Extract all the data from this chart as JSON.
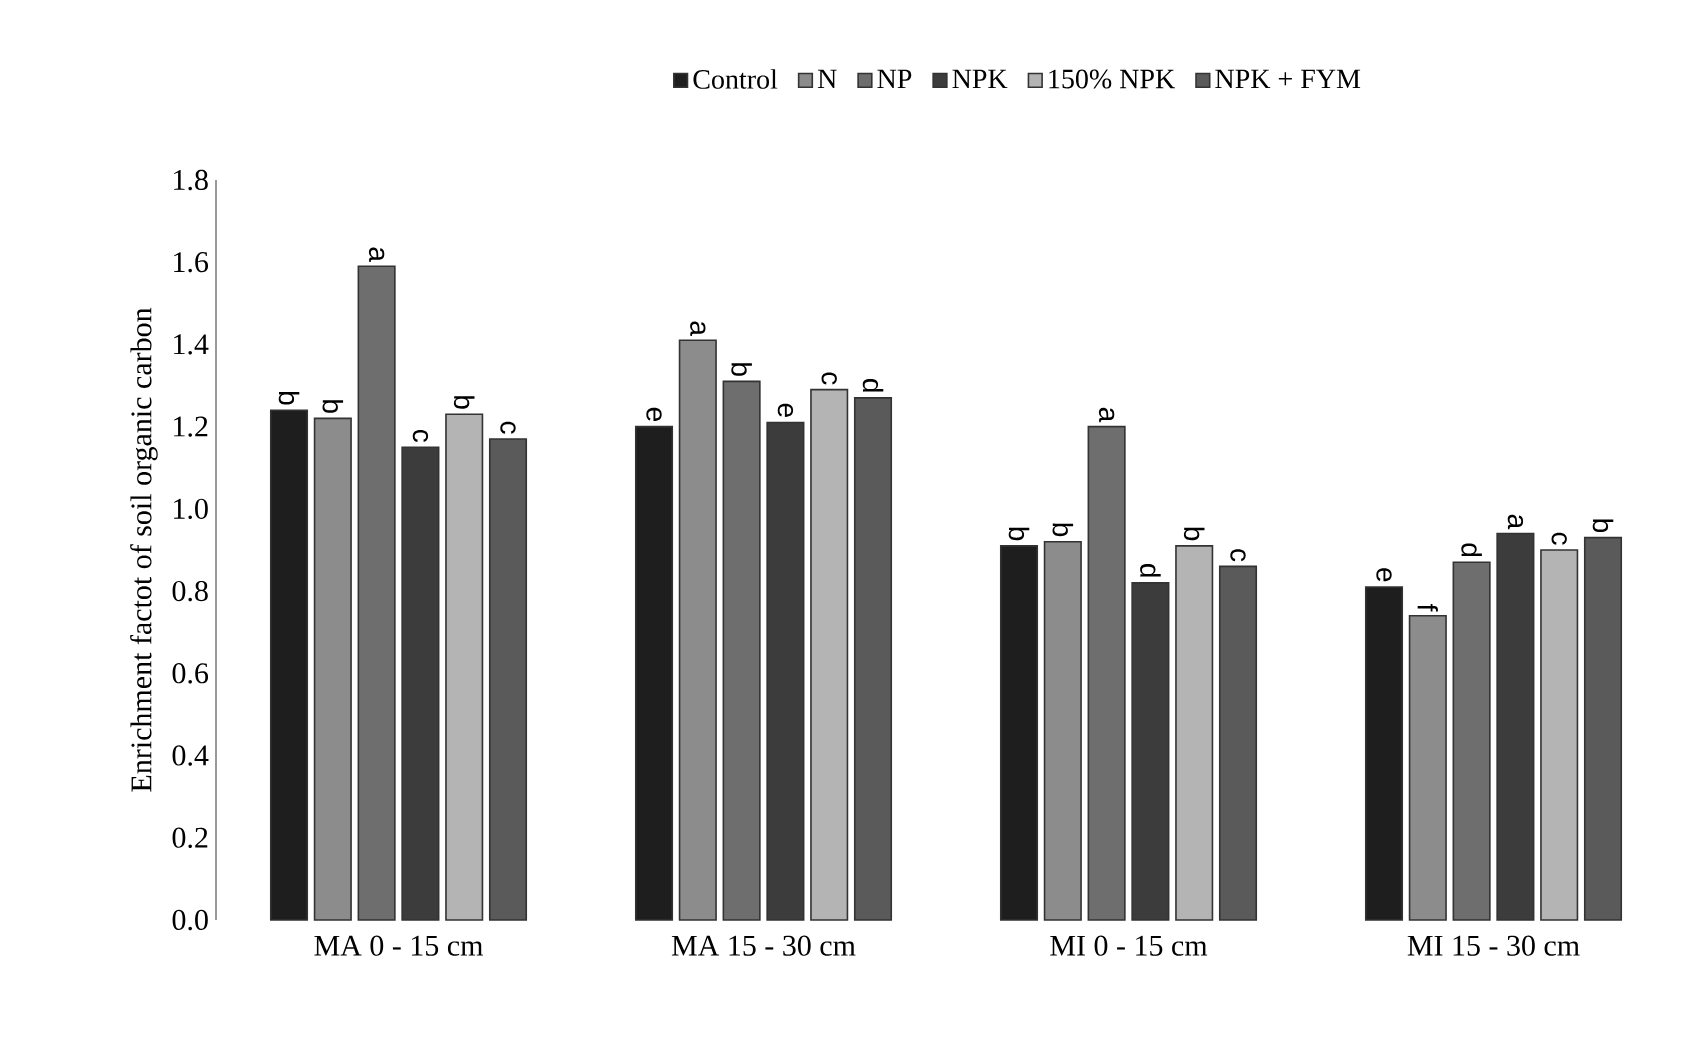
{
  "chart_data": {
    "type": "bar",
    "ylabel": "Enrichment factot of soil organic carbon",
    "categories": [
      "MA 0 - 15 cm",
      "MA 15 - 30 cm",
      "MI 0 - 15 cm",
      "MI 15 - 30 cm"
    ],
    "series": [
      {
        "name": "Control",
        "color": "#1e1e1e",
        "values": [
          1.24,
          1.2,
          0.91,
          0.81
        ]
      },
      {
        "name": "N",
        "color": "#8c8c8c",
        "values": [
          1.22,
          1.41,
          0.92,
          0.74
        ]
      },
      {
        "name": "NP",
        "color": "#6e6e6e",
        "values": [
          1.59,
          1.31,
          1.2,
          0.87
        ]
      },
      {
        "name": "NPK",
        "color": "#3c3c3c",
        "values": [
          1.15,
          1.21,
          0.82,
          0.94
        ]
      },
      {
        "name": "150% NPK",
        "color": "#b4b4b4",
        "values": [
          1.23,
          1.29,
          0.91,
          0.9
        ]
      },
      {
        "name": "NPK + FYM",
        "color": "#5a5a5a",
        "values": [
          1.17,
          1.27,
          0.86,
          0.93
        ]
      }
    ],
    "ylim": [
      0,
      1.8
    ],
    "yticks": [
      {
        "value": 0,
        "label": "0.0"
      },
      0.2,
      0.4,
      0.6,
      0.8,
      {
        "value": 1,
        "label": "1.0"
      },
      1.2,
      1.4,
      1.6,
      1.8
    ],
    "legend": "top",
    "annotations": [
      "b",
      "b",
      "a",
      "c",
      "b",
      "c",
      "e",
      "a",
      "b",
      "e",
      "c",
      "d",
      "b",
      "b",
      "a",
      "d",
      "b",
      "c",
      "e",
      "f",
      "d",
      "a",
      "c",
      "b"
    ]
  }
}
